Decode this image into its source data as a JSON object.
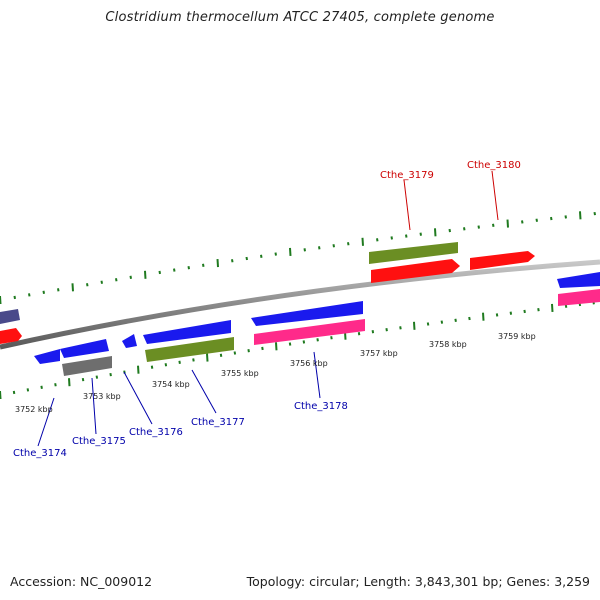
{
  "title": "Clostridium thermocellum ATCC 27405, complete genome",
  "footer": {
    "accession": "Accession: NC_009012",
    "summary": "Topology: circular; Length: 3,843,301 bp; Genes: 3,259"
  },
  "colors": {
    "backbone": "#8a8a8a",
    "tick": "#1f7a1f",
    "label_red": "#cc0000",
    "label_blue": "#0000aa",
    "blue": "#1a1aee",
    "red": "#ff1010",
    "olive": "#6b8e23",
    "magenta": "#ff2a8a",
    "gray": "#6e6e6e",
    "slate": "#4a4a8a"
  },
  "scale_labels": [
    {
      "text": "3752 kbp"
    },
    {
      "text": "3753 kbp"
    },
    {
      "text": "3754 kbp"
    },
    {
      "text": "3755 kbp"
    },
    {
      "text": "3756 kbp"
    },
    {
      "text": "3757 kbp"
    },
    {
      "text": "3758 kbp"
    },
    {
      "text": "3759 kbp"
    }
  ],
  "gene_labels": [
    {
      "text": "Cthe_3174",
      "color": "blue"
    },
    {
      "text": "Cthe_3175",
      "color": "blue"
    },
    {
      "text": "Cthe_3176",
      "color": "blue"
    },
    {
      "text": "Cthe_3177",
      "color": "blue"
    },
    {
      "text": "Cthe_3178",
      "color": "blue"
    },
    {
      "text": "Cthe_3179",
      "color": "red"
    },
    {
      "text": "Cthe_3180",
      "color": "red"
    }
  ]
}
